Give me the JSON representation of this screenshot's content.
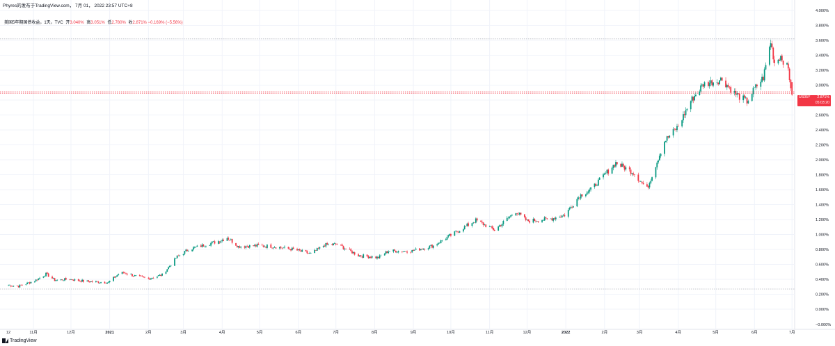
{
  "header": {
    "author_line": "Phyres的发布于TradingView.com， 7月 01， 2022 23:57 UTC+8",
    "symbol": "美国5年期国债收益，1天，TVC",
    "open_label": "开",
    "open_value": "3.040%",
    "high_label": "高",
    "high_value": "3.051%",
    "low_label": "低",
    "low_value": "2.780%",
    "close_label": "收",
    "close_value": "2.871%",
    "change": "−0.169% (−5.56%)"
  },
  "price_badge": {
    "symbol": "US05Y",
    "value": "2.871%",
    "countdown": "05:03:20"
  },
  "logo_text": "TradingView",
  "colors": {
    "up": "#089981",
    "down": "#f23645",
    "grid": "#f0f3fa"
  },
  "chart_data": {
    "type": "candlestick",
    "title": "",
    "y_unit": "%",
    "ylim": [
      -0.08,
      4.08
    ],
    "y_ticks": [
      "4.000%",
      "3.800%",
      "3.600%",
      "3.400%",
      "3.200%",
      "3.000%",
      "2.800%",
      "2.600%",
      "2.400%",
      "2.200%",
      "2.000%",
      "1.800%",
      "1.600%",
      "1.400%",
      "1.200%",
      "1.000%",
      "0.800%",
      "0.600%",
      "0.400%",
      "0.200%",
      "0.000%",
      "−0.000%"
    ],
    "x_ticks": [
      {
        "label": "12",
        "bold": false
      },
      {
        "label": "11月",
        "bold": false
      },
      {
        "label": "12月",
        "bold": false
      },
      {
        "label": "2021",
        "bold": true
      },
      {
        "label": "2月",
        "bold": false
      },
      {
        "label": "3月",
        "bold": false
      },
      {
        "label": "4月",
        "bold": false
      },
      {
        "label": "5月",
        "bold": false
      },
      {
        "label": "6月",
        "bold": false
      },
      {
        "label": "7月",
        "bold": false
      },
      {
        "label": "8月",
        "bold": false
      },
      {
        "label": "9月",
        "bold": false
      },
      {
        "label": "10月",
        "bold": false
      },
      {
        "label": "11月",
        "bold": false
      },
      {
        "label": "12月",
        "bold": false
      },
      {
        "label": "2022",
        "bold": true
      },
      {
        "label": "2月",
        "bold": false
      },
      {
        "label": "3月",
        "bold": false
      },
      {
        "label": "4月",
        "bold": false
      },
      {
        "label": "5月",
        "bold": false
      },
      {
        "label": "6月",
        "bold": false
      },
      {
        "label": "7月",
        "bold": false
      }
    ],
    "reference_lines": [
      3.62,
      2.91,
      0.27
    ],
    "close_path": [
      [
        "2020-10-12",
        0.32
      ],
      [
        "2020-10-20",
        0.31
      ],
      [
        "2020-10-26",
        0.34
      ],
      [
        "2020-11-02",
        0.38
      ],
      [
        "2020-11-11",
        0.47
      ],
      [
        "2020-11-18",
        0.39
      ],
      [
        "2020-11-30",
        0.4
      ],
      [
        "2020-12-14",
        0.37
      ],
      [
        "2020-12-31",
        0.36
      ],
      [
        "2021-01-08",
        0.47
      ],
      [
        "2021-01-12",
        0.49
      ],
      [
        "2021-01-22",
        0.44
      ],
      [
        "2021-02-01",
        0.41
      ],
      [
        "2021-02-12",
        0.46
      ],
      [
        "2021-02-24",
        0.7
      ],
      [
        "2021-03-05",
        0.8
      ],
      [
        "2021-03-18",
        0.86
      ],
      [
        "2021-03-31",
        0.92
      ],
      [
        "2021-04-05",
        0.96
      ],
      [
        "2021-04-14",
        0.84
      ],
      [
        "2021-04-30",
        0.85
      ],
      [
        "2021-05-12",
        0.84
      ],
      [
        "2021-05-28",
        0.8
      ],
      [
        "2021-06-11",
        0.74
      ],
      [
        "2021-06-22",
        0.86
      ],
      [
        "2021-07-02",
        0.87
      ],
      [
        "2021-07-19",
        0.72
      ],
      [
        "2021-08-04",
        0.69
      ],
      [
        "2021-08-12",
        0.78
      ],
      [
        "2021-08-31",
        0.78
      ],
      [
        "2021-09-17",
        0.85
      ],
      [
        "2021-09-30",
        0.98
      ],
      [
        "2021-10-21",
        1.19
      ],
      [
        "2021-11-05",
        1.06
      ],
      [
        "2021-11-22",
        1.31
      ],
      [
        "2021-12-01",
        1.18
      ],
      [
        "2021-12-20",
        1.21
      ],
      [
        "2021-12-31",
        1.26
      ],
      [
        "2022-01-12",
        1.52
      ],
      [
        "2022-01-21",
        1.6
      ],
      [
        "2022-02-10",
        1.96
      ],
      [
        "2022-02-24",
        1.83
      ],
      [
        "2022-03-07",
        1.61
      ],
      [
        "2022-03-21",
        2.25
      ],
      [
        "2022-04-01",
        2.45
      ],
      [
        "2022-04-11",
        2.79
      ],
      [
        "2022-04-21",
        3.01
      ],
      [
        "2022-05-06",
        3.08
      ],
      [
        "2022-05-16",
        2.89
      ],
      [
        "2022-05-26",
        2.78
      ],
      [
        "2022-06-01",
        2.95
      ],
      [
        "2022-06-08",
        3.1
      ],
      [
        "2022-06-14",
        3.58
      ],
      [
        "2022-06-17",
        3.3
      ],
      [
        "2022-06-22",
        3.39
      ],
      [
        "2022-06-28",
        3.21
      ],
      [
        "2022-07-01",
        2.871
      ]
    ]
  }
}
